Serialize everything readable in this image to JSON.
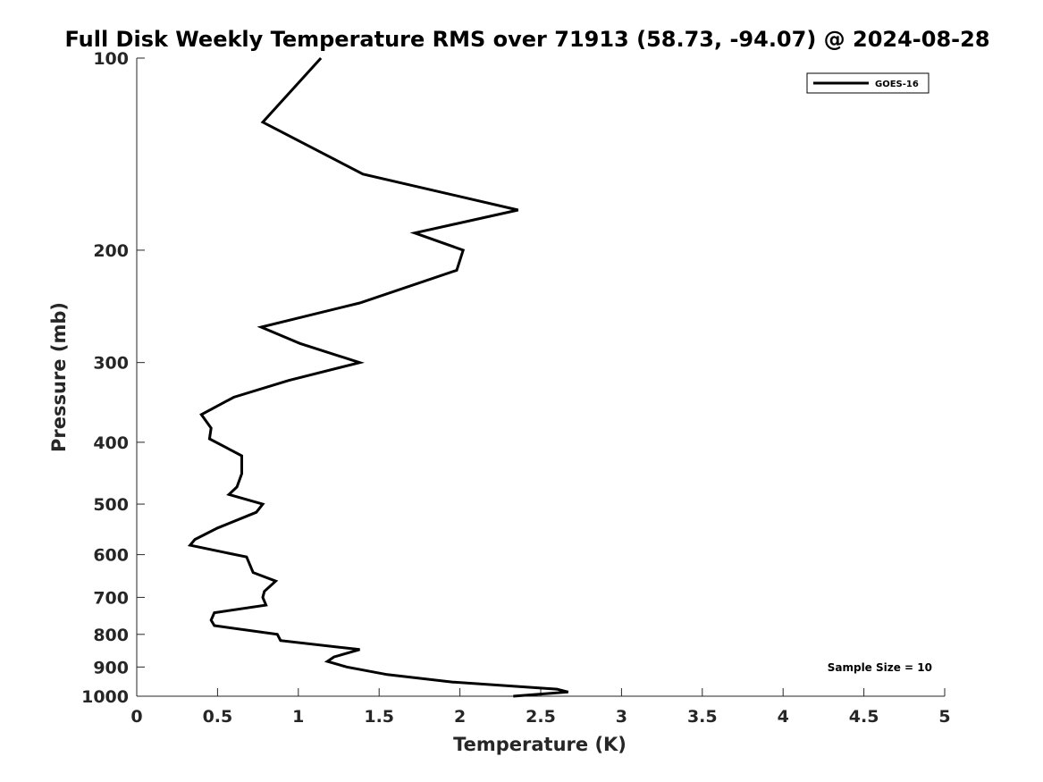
{
  "chart_data": {
    "type": "line",
    "title": "Full Disk Weekly Temperature RMS over 71913 (58.73, -94.07) @ 2024-08-28",
    "xlabel": "Temperature (K)",
    "ylabel": "Pressure (mb)",
    "xlim": [
      0,
      5
    ],
    "ylim": [
      100,
      1000
    ],
    "y_scale": "log",
    "y_reversed": true,
    "x_ticks": [
      "0",
      "0.5",
      "1",
      "1.5",
      "2",
      "2.5",
      "3",
      "3.5",
      "4",
      "4.5",
      "5"
    ],
    "y_ticks": [
      "100",
      "200",
      "300",
      "400",
      "500",
      "600",
      "700",
      "800",
      "900",
      "1000"
    ],
    "grid": false,
    "legend_position": "top-right",
    "annotation": "Sample Size = 10",
    "series": [
      {
        "name": "GOES-16",
        "color": "#000000",
        "points": [
          [
            1.14,
            100
          ],
          [
            0.78,
            126
          ],
          [
            1.4,
            152
          ],
          [
            2.36,
            173
          ],
          [
            1.72,
            188
          ],
          [
            2.02,
            200
          ],
          [
            1.98,
            215
          ],
          [
            1.38,
            242
          ],
          [
            0.77,
            264
          ],
          [
            1.01,
            280
          ],
          [
            1.38,
            300
          ],
          [
            0.94,
            320
          ],
          [
            0.6,
            340
          ],
          [
            0.4,
            362
          ],
          [
            0.46,
            380
          ],
          [
            0.45,
            395
          ],
          [
            0.65,
            420
          ],
          [
            0.65,
            448
          ],
          [
            0.62,
            470
          ],
          [
            0.57,
            483
          ],
          [
            0.78,
            500
          ],
          [
            0.74,
            515
          ],
          [
            0.5,
            545
          ],
          [
            0.36,
            568
          ],
          [
            0.33,
            580
          ],
          [
            0.68,
            605
          ],
          [
            0.72,
            640
          ],
          [
            0.86,
            660
          ],
          [
            0.79,
            685
          ],
          [
            0.78,
            700
          ],
          [
            0.8,
            720
          ],
          [
            0.48,
            740
          ],
          [
            0.46,
            760
          ],
          [
            0.48,
            775
          ],
          [
            0.87,
            800
          ],
          [
            0.89,
            818
          ],
          [
            1.38,
            845
          ],
          [
            1.22,
            868
          ],
          [
            1.18,
            882
          ],
          [
            1.3,
            900
          ],
          [
            1.55,
            925
          ],
          [
            1.95,
            950
          ],
          [
            2.6,
            975
          ],
          [
            2.67,
            985
          ],
          [
            2.33,
            1000
          ]
        ]
      }
    ]
  }
}
